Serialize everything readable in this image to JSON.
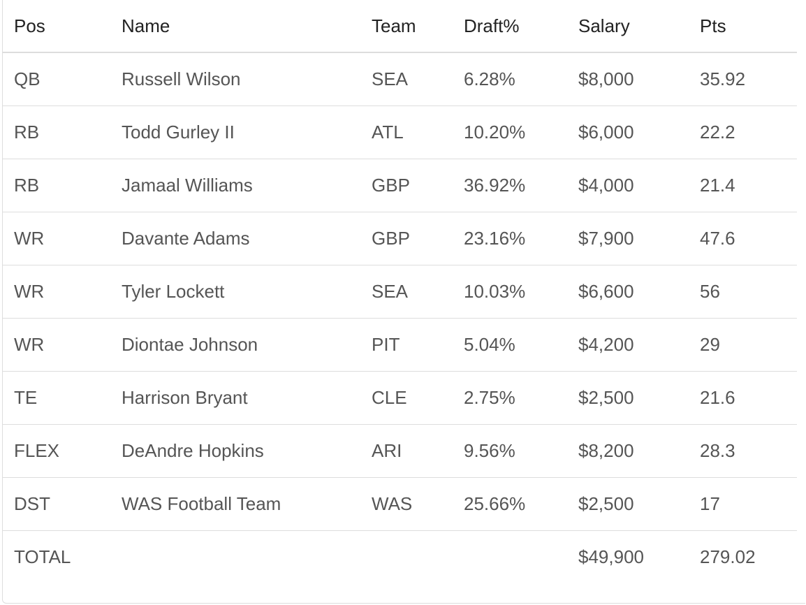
{
  "table": {
    "headers": {
      "pos": "Pos",
      "name": "Name",
      "team": "Team",
      "draft": "Draft%",
      "salary": "Salary",
      "pts": "Pts"
    },
    "rows": [
      {
        "pos": "QB",
        "name": "Russell Wilson",
        "team": "SEA",
        "draft": "6.28%",
        "salary": "$8,000",
        "pts": "35.92"
      },
      {
        "pos": "RB",
        "name": "Todd Gurley II",
        "team": "ATL",
        "draft": "10.20%",
        "salary": "$6,000",
        "pts": "22.2"
      },
      {
        "pos": "RB",
        "name": "Jamaal Williams",
        "team": "GBP",
        "draft": "36.92%",
        "salary": "$4,000",
        "pts": "21.4"
      },
      {
        "pos": "WR",
        "name": "Davante Adams",
        "team": "GBP",
        "draft": "23.16%",
        "salary": "$7,900",
        "pts": "47.6"
      },
      {
        "pos": "WR",
        "name": "Tyler Lockett",
        "team": "SEA",
        "draft": "10.03%",
        "salary": "$6,600",
        "pts": "56"
      },
      {
        "pos": "WR",
        "name": "Diontae Johnson",
        "team": "PIT",
        "draft": "5.04%",
        "salary": "$4,200",
        "pts": "29"
      },
      {
        "pos": "TE",
        "name": "Harrison Bryant",
        "team": "CLE",
        "draft": "2.75%",
        "salary": "$2,500",
        "pts": "21.6"
      },
      {
        "pos": "FLEX",
        "name": "DeAndre Hopkins",
        "team": "ARI",
        "draft": "9.56%",
        "salary": "$8,200",
        "pts": "28.3"
      },
      {
        "pos": "DST",
        "name": "WAS Football Team",
        "team": "WAS",
        "draft": "25.66%",
        "salary": "$2,500",
        "pts": "17"
      }
    ],
    "total": {
      "label": "TOTAL",
      "salary": "$49,900",
      "pts": "279.02"
    }
  }
}
